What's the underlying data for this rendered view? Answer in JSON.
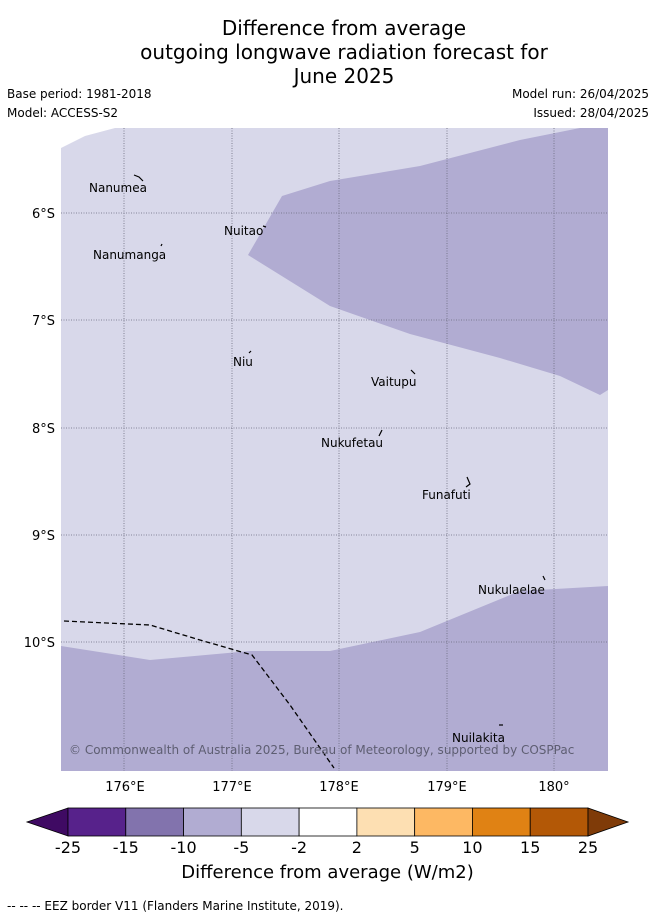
{
  "header": {
    "title_line1": "Difference from average",
    "title_line2": "outgoing longwave radiation forecast for",
    "title_line3": "June 2025",
    "base_period": "Base period: 1981-2018",
    "model": "Model: ACCESS-S2",
    "model_run": "Model run: 26/04/2025",
    "issued": "Issued: 28/04/2025"
  },
  "map": {
    "lat_labels": [
      "6°S",
      "7°S",
      "8°S",
      "9°S",
      "10°S"
    ],
    "lon_labels": [
      "176°E",
      "177°E",
      "178°E",
      "179°E",
      "180°"
    ],
    "places": [
      {
        "name": "Nanumea"
      },
      {
        "name": "Nuitao"
      },
      {
        "name": "Nanumanga"
      },
      {
        "name": "Niu"
      },
      {
        "name": "Vaitupu"
      },
      {
        "name": "Nukufetau"
      },
      {
        "name": "Funafuti"
      },
      {
        "name": "Nukulaelae"
      },
      {
        "name": "Nuilakita"
      }
    ],
    "copyright": "© Commonwealth of Australia 2025, Bureau of Meteorology, supported by COSPPac",
    "colors": {
      "light_lavender": "#d8d8ea",
      "medium_lavender": "#b1acd2"
    }
  },
  "colorbar": {
    "ticks": [
      "-25",
      "-15",
      "-10",
      "-5",
      "-2",
      "2",
      "5",
      "10",
      "15",
      "25"
    ],
    "colors": [
      "#3f0a63",
      "#57228b",
      "#8273ad",
      "#b1acd2",
      "#d8d8ea",
      "#ffffff",
      "#fddfb2",
      "#fdb863",
      "#e08214",
      "#b35806",
      "#7f3b08"
    ],
    "label": "Difference from average (W/m2)"
  },
  "footnote": "-- --  -- EEZ border V11 (Flanders Marine Institute, 2019)."
}
